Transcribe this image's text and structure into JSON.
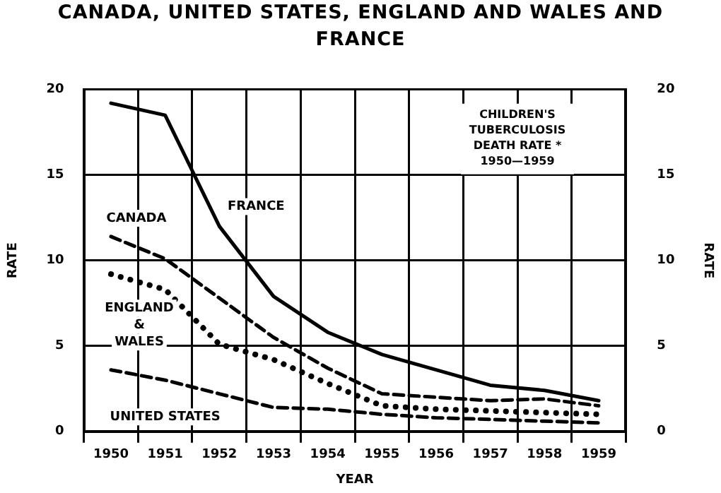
{
  "chart_data": {
    "type": "line",
    "title": "CANADA, UNITED STATES, ENGLAND AND WALES AND FRANCE",
    "xlabel": "YEAR",
    "ylabel": "RATE",
    "y2label": "RATE",
    "categories": [
      "1950",
      "1951",
      "1952",
      "1953",
      "1954",
      "1955",
      "1956",
      "1957",
      "1958",
      "1959"
    ],
    "series": [
      {
        "name": "FRANCE",
        "color": "#000000",
        "line_style": "solid",
        "values": [
          19.2,
          18.5,
          12.0,
          7.9,
          5.8,
          4.5,
          3.6,
          2.7,
          2.4,
          1.8
        ]
      },
      {
        "name": "CANADA",
        "color": "#000000",
        "line_style": "dashed",
        "values": [
          11.4,
          10.1,
          7.8,
          5.5,
          3.7,
          2.2,
          2.0,
          1.8,
          1.9,
          1.5
        ]
      },
      {
        "name": "ENGLAND & WALES",
        "color": "#000000",
        "line_style": "dotted",
        "values": [
          9.2,
          8.3,
          5.1,
          4.2,
          2.8,
          1.5,
          1.3,
          1.2,
          1.1,
          1.0
        ]
      },
      {
        "name": "UNITED STATES",
        "color": "#000000",
        "line_style": "dashed",
        "values": [
          3.6,
          3.0,
          2.2,
          1.4,
          1.3,
          1.0,
          0.8,
          0.7,
          0.6,
          0.5
        ]
      }
    ],
    "ylim": [
      0,
      20
    ],
    "yticks": [
      0,
      5,
      10,
      15,
      20
    ],
    "y2lim": [
      0,
      20
    ],
    "y2ticks": [
      0,
      5,
      10,
      15,
      20
    ],
    "grid": true,
    "legend": false,
    "marker": "none",
    "annotations": [
      "CHILDREN'S\nTUBERCULOSIS\nDEATH RATE *\n1950—1959"
    ]
  }
}
